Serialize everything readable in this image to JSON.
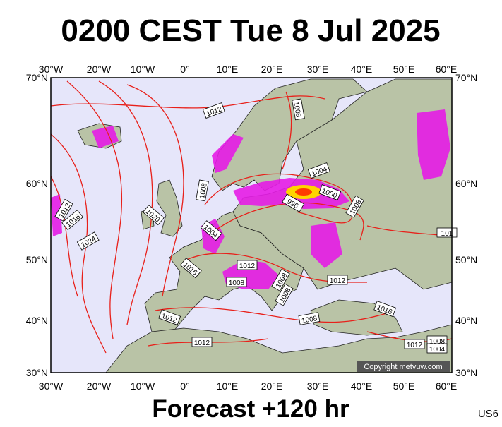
{
  "title": "0200 CEST Tue 8 Jul 2025",
  "lon_labels": [
    "30°W",
    "20°W",
    "10°W",
    "0°",
    "10°E",
    "20°E",
    "30°E",
    "40°E",
    "50°E",
    "60°E"
  ],
  "lat_labels": [
    "70°N",
    "60°N",
    "50°N",
    "40°N",
    "30°N"
  ],
  "isobar_labels": [
    "1012",
    "1008",
    "1004",
    "1000",
    "996",
    "1008",
    "1012",
    "1016",
    "1020",
    "1004",
    "1008",
    "1024",
    "1016",
    "1012",
    "1008",
    "1008",
    "1008",
    "1012",
    "1016",
    "1012",
    "1008",
    "1012",
    "1012",
    "1008",
    "1004",
    "101"
  ],
  "copyright": "Copyright metvuw.com",
  "footer": "Forecast +120 hr",
  "model_tag": "US6"
}
